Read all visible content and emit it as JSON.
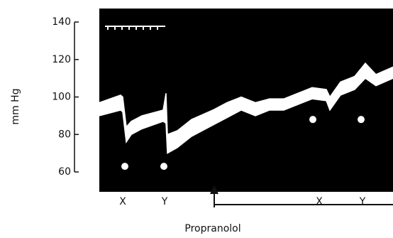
{
  "chart_data": {
    "type": "band",
    "y_label": "mm Hg",
    "ylim": [
      49.4,
      147.2
    ],
    "yticks": [
      60,
      80,
      100,
      120,
      140
    ],
    "xlim": [
      0,
      414
    ],
    "x": [
      0,
      30,
      33,
      38,
      45,
      60,
      90,
      94,
      96,
      110,
      130,
      160,
      180,
      200,
      220,
      240,
      260,
      280,
      300,
      320,
      325,
      340,
      360,
      375,
      390,
      414
    ],
    "series": [
      {
        "color": "#ffffff",
        "values": [
          97,
          101,
          100,
          84,
          87,
          90,
          93,
          102,
          80,
          82,
          88,
          93,
          97,
          100,
          97,
          99,
          99,
          102,
          105,
          104,
          100,
          108,
          111,
          118,
          112,
          116
        ]
      },
      {
        "color": "#ffffff",
        "values": [
          90,
          93,
          92,
          76,
          80,
          83,
          87,
          86,
          70,
          73,
          79,
          85,
          89,
          93,
          90,
          93,
          93,
          96,
          99,
          98,
          93,
          101,
          104,
          110,
          106,
          110
        ]
      }
    ],
    "dots": {
      "color": "#ffffff",
      "x": [
        36,
        91,
        301,
        369
      ],
      "values": [
        63,
        63,
        88,
        88
      ]
    },
    "events": {
      "labels": [
        "X",
        "Y",
        "X",
        "Y"
      ],
      "x": [
        33,
        92,
        310,
        371
      ]
    },
    "drug": {
      "label": "Propranolol",
      "x": 160
    }
  }
}
